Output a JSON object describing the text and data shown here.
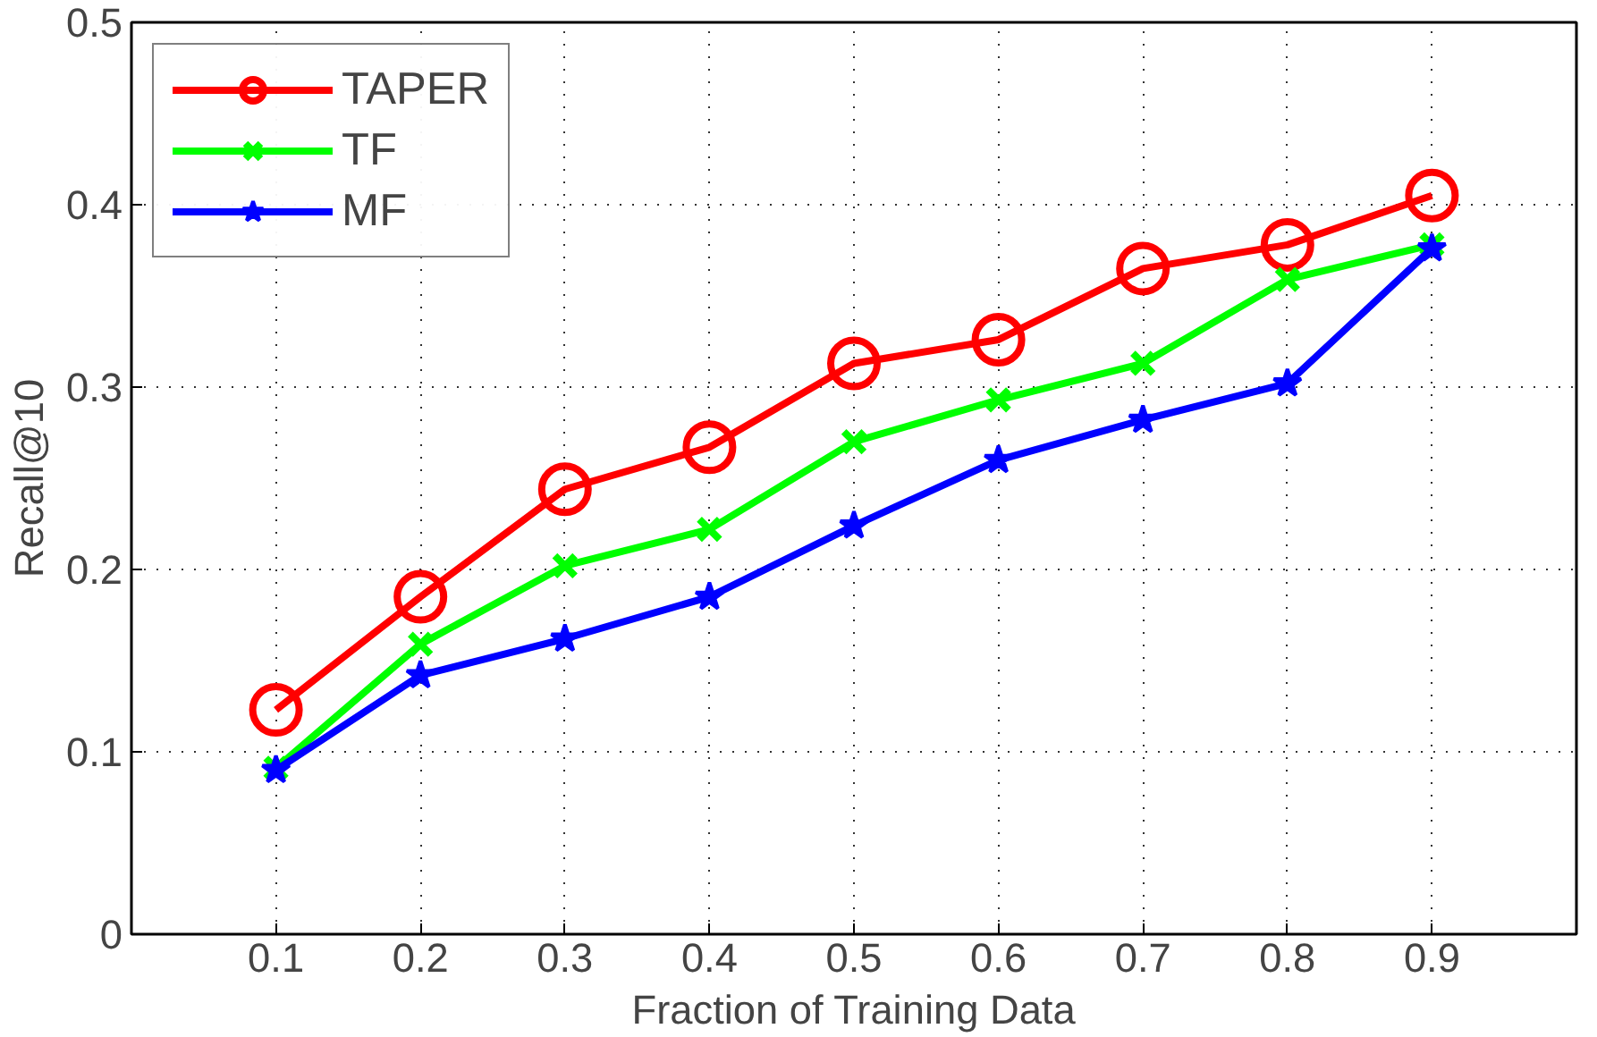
{
  "chart_data": {
    "type": "line",
    "xlabel": "Fraction of Training Data",
    "ylabel": "Recall@10",
    "x": [
      0.1,
      0.2,
      0.3,
      0.4,
      0.5,
      0.6,
      0.7,
      0.8,
      0.9
    ],
    "xlim": [
      0,
      1
    ],
    "xticks": [
      0.1,
      0.2,
      0.3,
      0.4,
      0.5,
      0.6,
      0.7,
      0.8,
      0.9
    ],
    "ylim": [
      0,
      0.5
    ],
    "yticks": [
      0,
      0.1,
      0.2,
      0.3,
      0.4,
      0.5
    ],
    "grid": true,
    "legend": "top left",
    "line_style": "solid",
    "series": [
      {
        "name": "TAPER",
        "color": "#ff0000",
        "marker": "circle",
        "values": [
          0.123,
          0.185,
          0.244,
          0.267,
          0.313,
          0.326,
          0.365,
          0.378,
          0.405
        ]
      },
      {
        "name": "TF",
        "color": "#00ff00",
        "marker": "cross",
        "values": [
          0.091,
          0.159,
          0.202,
          0.222,
          0.27,
          0.293,
          0.313,
          0.359,
          0.378
        ]
      },
      {
        "name": "MF",
        "color": "#0000ff",
        "marker": "star",
        "values": [
          0.09,
          0.142,
          0.162,
          0.185,
          0.224,
          0.26,
          0.282,
          0.302,
          0.376
        ]
      }
    ]
  }
}
